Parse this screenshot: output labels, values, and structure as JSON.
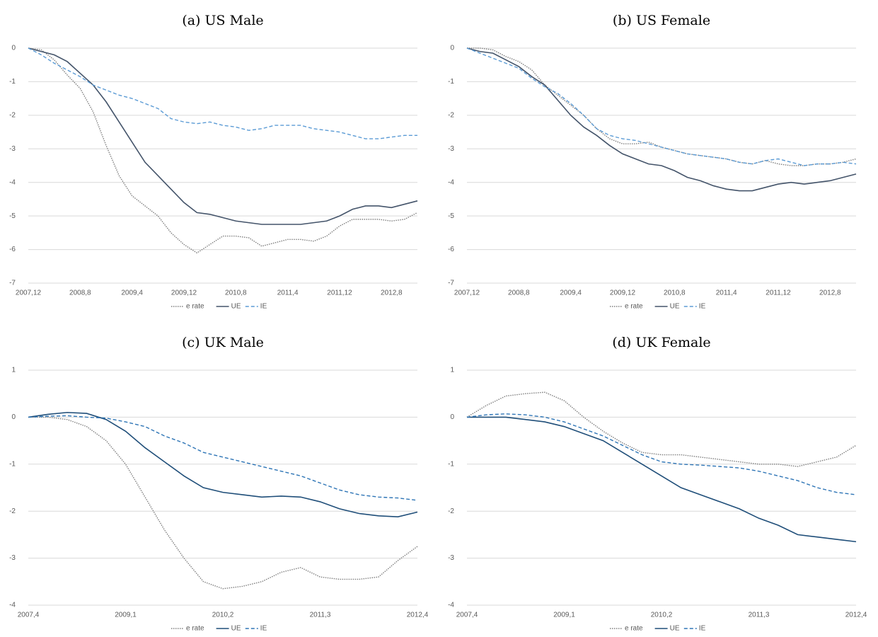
{
  "chart_data": [
    {
      "type": "line",
      "title": "(a) US Male",
      "categories": [
        "2007,12",
        null,
        null,
        null,
        "2008,8",
        null,
        null,
        null,
        "2009,4",
        null,
        null,
        null,
        "2009,12",
        null,
        null,
        null,
        "2010,8",
        null,
        null,
        null,
        "2011,4",
        null,
        null,
        null,
        "2011,12",
        null,
        null,
        null,
        "2012,8",
        null,
        null
      ],
      "series": [
        {
          "name": "e rate",
          "color": "#7f7f7f",
          "dash": "dotted",
          "values": [
            0,
            -0.05,
            -0.35,
            -0.8,
            -1.2,
            -1.9,
            -2.9,
            -3.8,
            -4.4,
            -4.7,
            -5.0,
            -5.5,
            -5.85,
            -6.1,
            -5.85,
            -5.6,
            -5.6,
            -5.65,
            -5.9,
            -5.8,
            -5.7,
            -5.7,
            -5.75,
            -5.6,
            -5.3,
            -5.1,
            -5.1,
            -5.1,
            -5.15,
            -5.1,
            -4.9
          ]
        },
        {
          "name": "UE",
          "color": "#44546a",
          "dash": "solid",
          "values": [
            0,
            -0.1,
            -0.2,
            -0.4,
            -0.75,
            -1.1,
            -1.6,
            -2.2,
            -2.8,
            -3.4,
            -3.8,
            -4.2,
            -4.6,
            -4.9,
            -4.95,
            -5.05,
            -5.15,
            -5.2,
            -5.25,
            -5.25,
            -5.25,
            -5.25,
            -5.2,
            -5.15,
            -5.0,
            -4.8,
            -4.7,
            -4.7,
            -4.75,
            -4.65,
            -4.55
          ]
        },
        {
          "name": "IE",
          "color": "#5b9bd5",
          "dash": "dashed",
          "values": [
            0,
            -0.2,
            -0.45,
            -0.65,
            -0.85,
            -1.1,
            -1.25,
            -1.4,
            -1.5,
            -1.65,
            -1.8,
            -2.1,
            -2.2,
            -2.25,
            -2.2,
            -2.3,
            -2.35,
            -2.45,
            -2.4,
            -2.3,
            -2.3,
            -2.3,
            -2.4,
            -2.45,
            -2.5,
            -2.6,
            -2.7,
            -2.7,
            -2.65,
            -2.6,
            -2.6
          ]
        }
      ],
      "ylim": [
        -7,
        0
      ],
      "yticks": [
        0,
        -1,
        -2,
        -3,
        -4,
        -5,
        -6,
        -7
      ],
      "grid": true,
      "legend": "bottom"
    },
    {
      "type": "line",
      "title": "(b) US Female",
      "categories": [
        "2007,12",
        null,
        null,
        null,
        "2008,8",
        null,
        null,
        null,
        "2009,4",
        null,
        null,
        null,
        "2009,12",
        null,
        null,
        null,
        "2010,8",
        null,
        null,
        null,
        "2011,4",
        null,
        null,
        null,
        "2011,12",
        null,
        null,
        null,
        "2012,8",
        null,
        null
      ],
      "series": [
        {
          "name": "e rate",
          "color": "#7f7f7f",
          "dash": "dotted",
          "values": [
            0,
            0.0,
            -0.05,
            -0.25,
            -0.4,
            -0.65,
            -1.1,
            -1.4,
            -1.7,
            -2.0,
            -2.4,
            -2.7,
            -2.85,
            -2.85,
            -2.8,
            -2.95,
            -3.05,
            -3.15,
            -3.2,
            -3.25,
            -3.3,
            -3.4,
            -3.45,
            -3.35,
            -3.45,
            -3.5,
            -3.5,
            -3.45,
            -3.45,
            -3.4,
            -3.3
          ]
        },
        {
          "name": "UE",
          "color": "#44546a",
          "dash": "solid",
          "values": [
            0,
            -0.1,
            -0.15,
            -0.35,
            -0.55,
            -0.85,
            -1.1,
            -1.55,
            -2.0,
            -2.35,
            -2.6,
            -2.9,
            -3.15,
            -3.3,
            -3.45,
            -3.5,
            -3.65,
            -3.85,
            -3.95,
            -4.1,
            -4.2,
            -4.25,
            -4.25,
            -4.15,
            -4.05,
            -4.0,
            -4.05,
            -4.0,
            -3.95,
            -3.85,
            -3.75
          ]
        },
        {
          "name": "IE",
          "color": "#5b9bd5",
          "dash": "dashed",
          "values": [
            0,
            -0.15,
            -0.3,
            -0.45,
            -0.6,
            -0.9,
            -1.15,
            -1.35,
            -1.65,
            -2.0,
            -2.4,
            -2.6,
            -2.7,
            -2.75,
            -2.85,
            -2.95,
            -3.05,
            -3.15,
            -3.2,
            -3.25,
            -3.3,
            -3.4,
            -3.45,
            -3.35,
            -3.3,
            -3.4,
            -3.5,
            -3.45,
            -3.45,
            -3.4,
            -3.45
          ]
        }
      ],
      "ylim": [
        -7,
        0
      ],
      "yticks": [
        0,
        -1,
        -2,
        -3,
        -4,
        -5,
        -6,
        -7
      ],
      "grid": true,
      "legend": "bottom"
    },
    {
      "type": "line",
      "title": "(c) UK Male",
      "categories": [
        "2007,4",
        null,
        null,
        null,
        null,
        "2009,1",
        null,
        null,
        null,
        null,
        "2010,2",
        null,
        null,
        null,
        null,
        "2011,3",
        null,
        null,
        null,
        null,
        "2012,4"
      ],
      "series": [
        {
          "name": "e rate",
          "color": "#7f7f7f",
          "dash": "dotted",
          "values": [
            0,
            0.0,
            -0.05,
            -0.2,
            -0.5,
            -1.0,
            -1.7,
            -2.4,
            -3.0,
            -3.5,
            -3.65,
            -3.6,
            -3.5,
            -3.3,
            -3.2,
            -3.4,
            -3.45,
            -3.45,
            -3.4,
            -3.05,
            -2.75
          ]
        },
        {
          "name": "UE",
          "color": "#1f4e79",
          "dash": "solid",
          "values": [
            0,
            0.06,
            0.1,
            0.08,
            -0.05,
            -0.3,
            -0.65,
            -0.95,
            -1.25,
            -1.5,
            -1.6,
            -1.65,
            -1.7,
            -1.68,
            -1.7,
            -1.8,
            -1.95,
            -2.05,
            -2.1,
            -2.12,
            -2.02
          ]
        },
        {
          "name": "IE",
          "color": "#2e75b6",
          "dash": "dashed",
          "values": [
            0,
            0.02,
            0.03,
            0.0,
            -0.02,
            -0.1,
            -0.2,
            -0.4,
            -0.55,
            -0.75,
            -0.85,
            -0.95,
            -1.05,
            -1.15,
            -1.25,
            -1.4,
            -1.55,
            -1.65,
            -1.7,
            -1.72,
            -1.77
          ]
        }
      ],
      "ylim": [
        -4,
        1
      ],
      "yticks": [
        1,
        0,
        -1,
        -2,
        -3,
        -4
      ],
      "grid": true,
      "legend": "bottom"
    },
    {
      "type": "line",
      "title": "(d) UK Female",
      "categories": [
        "2007,4",
        null,
        null,
        null,
        null,
        "2009,1",
        null,
        null,
        null,
        null,
        "2010,2",
        null,
        null,
        null,
        null,
        "2011,3",
        null,
        null,
        null,
        null,
        "2012,4"
      ],
      "series": [
        {
          "name": "e rate",
          "color": "#7f7f7f",
          "dash": "dotted",
          "values": [
            0,
            0.25,
            0.45,
            0.5,
            0.53,
            0.35,
            0.0,
            -0.3,
            -0.55,
            -0.75,
            -0.8,
            -0.8,
            -0.85,
            -0.9,
            -0.95,
            -1.0,
            -1.0,
            -1.05,
            -0.95,
            -0.85,
            -0.6
          ]
        },
        {
          "name": "UE",
          "color": "#1f4e79",
          "dash": "solid",
          "values": [
            0,
            0.0,
            0.0,
            -0.05,
            -0.1,
            -0.2,
            -0.35,
            -0.5,
            -0.75,
            -1.0,
            -1.25,
            -1.5,
            -1.65,
            -1.8,
            -1.95,
            -2.15,
            -2.3,
            -2.5,
            -2.55,
            -2.6,
            -2.65
          ]
        },
        {
          "name": "IE",
          "color": "#2e75b6",
          "dash": "dashed",
          "values": [
            0,
            0.05,
            0.07,
            0.05,
            0.0,
            -0.1,
            -0.25,
            -0.4,
            -0.6,
            -0.8,
            -0.95,
            -1.0,
            -1.02,
            -1.05,
            -1.08,
            -1.15,
            -1.25,
            -1.35,
            -1.5,
            -1.6,
            -1.65
          ]
        }
      ],
      "ylim": [
        -4,
        1
      ],
      "yticks": [
        1,
        0,
        -1,
        -2,
        -3,
        -4
      ],
      "grid": true,
      "legend": "bottom"
    }
  ]
}
